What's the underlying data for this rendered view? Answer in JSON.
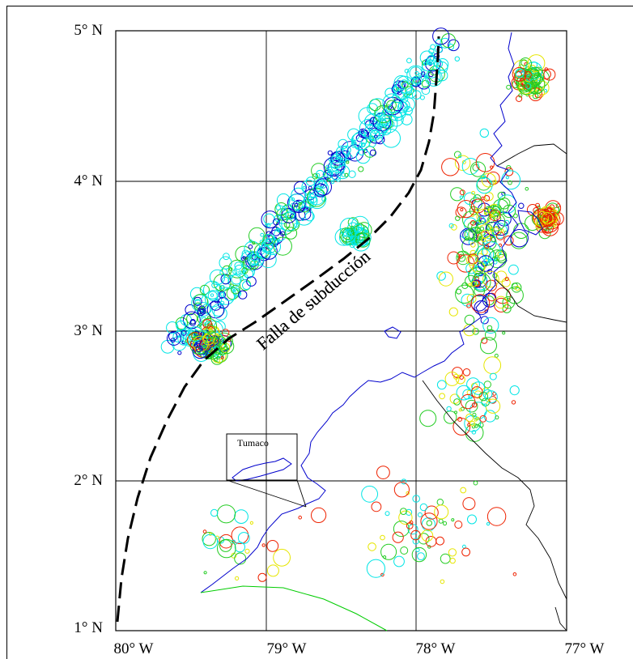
{
  "map": {
    "lat_labels": [
      "5° N",
      "4° N",
      "3° N",
      "2° N",
      "1° N"
    ],
    "lon_labels": [
      "80° W",
      "79° W",
      "78° W",
      "77° W"
    ],
    "fault_label": "Falla de subducción",
    "inset_label": "Tumaco"
  },
  "extent": {
    "lon_west": -80,
    "lon_east": -77,
    "lat_south": 1,
    "lat_north": 5
  },
  "colors": {
    "grid": "#000000",
    "coastline": "#0000cc",
    "border": "#000000",
    "river": "#00cc00",
    "cyan_events": "#00e5e5",
    "green_events": "#22cc22",
    "yellow_events": "#e6e600",
    "red_events": "#ee2200",
    "blue_events": "#0000cc"
  }
}
